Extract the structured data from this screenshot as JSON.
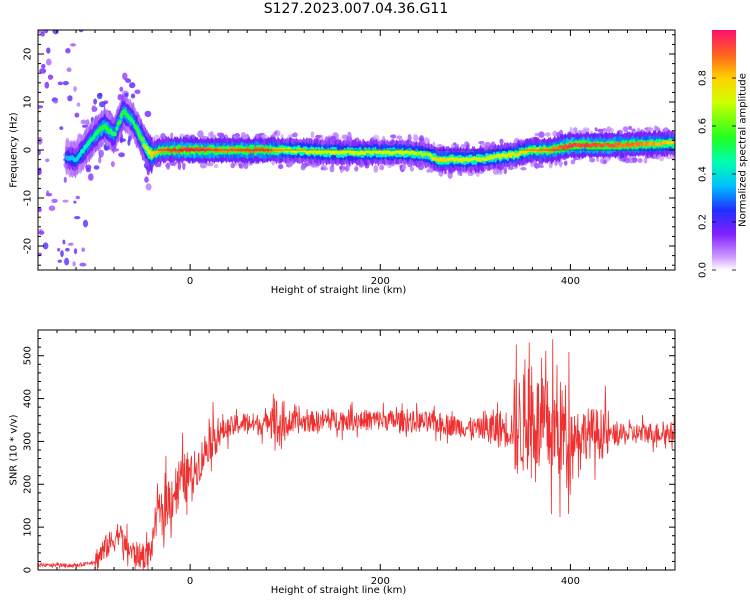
{
  "title": "S127.2023.007.04.36.G11",
  "chart_data": [
    {
      "type": "heatmap",
      "xlabel": "Height of straight line (km)",
      "ylabel": "Frequency (Hz)",
      "xlim": [
        -160,
        510
      ],
      "ylim": [
        -25,
        25
      ],
      "xticks": [
        0,
        200,
        400
      ],
      "yticks": [
        -20,
        -10,
        0,
        10,
        20
      ],
      "colorbar": {
        "label": "Normalized spectral amplitude",
        "range": [
          0.0,
          1.0
        ],
        "ticks": [
          0.0,
          0.2,
          0.4,
          0.6,
          0.8
        ]
      },
      "ridge": {
        "x": [
          -160,
          -140,
          -120,
          -100,
          -90,
          -80,
          -70,
          -60,
          -50,
          -45,
          -40,
          -30,
          -20,
          0,
          20,
          40,
          60,
          80,
          100,
          150,
          200,
          230,
          250,
          260,
          280,
          300,
          320,
          340,
          360,
          380,
          400,
          450,
          510
        ],
        "freq": [
          0,
          -1,
          -2,
          3,
          5,
          3,
          8,
          6,
          2,
          0,
          -1,
          0,
          0,
          0,
          0,
          0,
          0,
          0,
          0,
          -0.5,
          -0.5,
          -0.5,
          -1,
          -2,
          -2,
          -2,
          -1.5,
          -1,
          0,
          0,
          1,
          1,
          1.5
        ],
        "amplitude": [
          0.1,
          0.3,
          0.4,
          0.5,
          0.55,
          0.5,
          0.55,
          0.5,
          0.6,
          0.7,
          0.8,
          0.85,
          0.9,
          0.95,
          0.9,
          0.85,
          0.9,
          0.9,
          0.75,
          0.7,
          0.7,
          0.7,
          0.65,
          0.8,
          0.75,
          0.7,
          0.7,
          0.75,
          0.8,
          0.85,
          0.95,
          0.9,
          0.8
        ]
      }
    },
    {
      "type": "line",
      "xlabel": "Height of straight line (km)",
      "ylabel": "SNR (10 * v/v)",
      "xlim": [
        -160,
        510
      ],
      "ylim": [
        0,
        560
      ],
      "xticks": [
        0,
        200,
        400
      ],
      "yticks": [
        0,
        100,
        200,
        300,
        400,
        500
      ],
      "color": "#f03030",
      "series": [
        {
          "x": [
            -160,
            -140,
            -120,
            -100,
            -90,
            -80,
            -75,
            -70,
            -60,
            -50,
            -40,
            -35,
            -30,
            -25,
            -20,
            -10,
            0,
            10,
            20,
            30,
            40,
            50,
            60,
            70,
            80,
            88,
            92,
            100,
            120,
            150,
            200,
            250,
            300,
            320,
            340,
            350,
            360,
            370,
            380,
            400,
            420,
            450,
            480,
            510
          ],
          "y": [
            10,
            12,
            10,
            20,
            50,
            70,
            90,
            60,
            40,
            30,
            50,
            150,
            120,
            160,
            170,
            210,
            220,
            250,
            300,
            320,
            330,
            340,
            345,
            340,
            340,
            380,
            330,
            340,
            345,
            350,
            350,
            345,
            330,
            330,
            330,
            340,
            360,
            330,
            330,
            320,
            320,
            315,
            320,
            320
          ]
        }
      ]
    }
  ]
}
